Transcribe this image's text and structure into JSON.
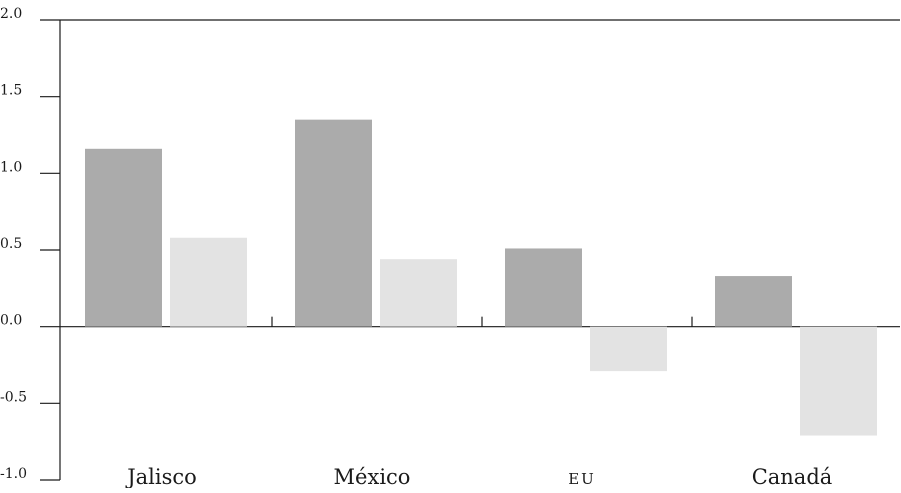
{
  "colors": {
    "series1": "#ababab",
    "series2": "#e3e3e3",
    "axis": "#1a1a1a"
  },
  "chart_data": {
    "type": "bar",
    "categories": [
      "Jalisco",
      "México",
      "EU",
      "Canadá"
    ],
    "series": [
      {
        "values": [
          1.16,
          1.35,
          0.51,
          0.33
        ]
      },
      {
        "values": [
          0.58,
          0.44,
          -0.29,
          -0.71
        ]
      }
    ],
    "title": "",
    "xlabel": "",
    "ylabel": "",
    "ylim": [
      -1.0,
      2.0
    ],
    "yticks": [
      "2.0",
      "1.5",
      "1.0",
      "0.5",
      "0.0",
      "-0.5",
      "-1.0"
    ],
    "grid": false,
    "legend": "none"
  }
}
